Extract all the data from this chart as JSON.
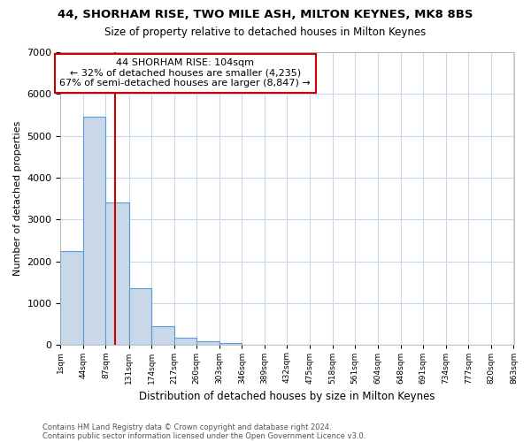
{
  "title1": "44, SHORHAM RISE, TWO MILE ASH, MILTON KEYNES, MK8 8BS",
  "title2": "Size of property relative to detached houses in Milton Keynes",
  "xlabel": "Distribution of detached houses by size in Milton Keynes",
  "ylabel": "Number of detached properties",
  "footnote1": "Contains HM Land Registry data © Crown copyright and database right 2024.",
  "footnote2": "Contains public sector information licensed under the Open Government Licence v3.0.",
  "annotation_line1": "44 SHORHAM RISE: 104sqm",
  "annotation_line2": "← 32% of detached houses are smaller (4,235)",
  "annotation_line3": "67% of semi-detached houses are larger (8,847) →",
  "property_size": 104,
  "bin_edges": [
    1,
    44,
    87,
    131,
    174,
    217,
    260,
    303,
    346,
    389,
    432,
    475,
    518,
    561,
    604,
    648,
    691,
    734,
    777,
    820,
    863
  ],
  "bin_counts": [
    2250,
    5450,
    3400,
    1350,
    450,
    175,
    90,
    50,
    0,
    0,
    0,
    0,
    0,
    0,
    0,
    0,
    0,
    0,
    0,
    0
  ],
  "bar_color": "#c8d8e8",
  "bar_edge_color": "#5b9bd5",
  "vline_color": "#cc0000",
  "annotation_box_color": "#cc0000",
  "grid_color": "#c8d8e8",
  "bg_color": "#ffffff",
  "ylim": [
    0,
    7000
  ],
  "yticks": [
    0,
    1000,
    2000,
    3000,
    4000,
    5000,
    6000,
    7000
  ]
}
